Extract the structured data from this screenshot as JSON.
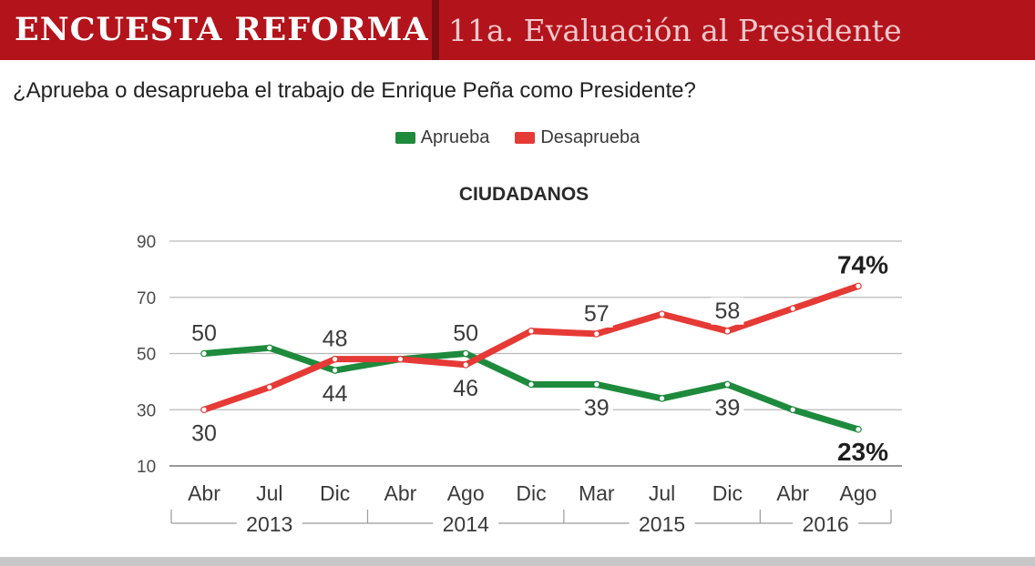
{
  "header": {
    "brand": "ENCUESTA REFORMA",
    "section": "11a. Evaluación al Presidente"
  },
  "question": "¿Aprueba o desaprueba el trabajo de Enrique Peña como Presidente?",
  "colors": {
    "header_bg": "#b3141c",
    "aprueba": "#1e8a3c",
    "desaprueba": "#e53a36"
  },
  "chart_data": {
    "type": "line",
    "title": "CIUDADANOS",
    "ylim": [
      10,
      90
    ],
    "yticks": [
      10,
      30,
      50,
      70,
      90
    ],
    "categories": [
      "Abr",
      "Jul",
      "Dic",
      "Abr",
      "Ago",
      "Dic",
      "Mar",
      "Jul",
      "Dic",
      "Abr",
      "Ago"
    ],
    "year_groups": [
      {
        "label": "2013",
        "from": 0,
        "to": 2
      },
      {
        "label": "2014",
        "from": 3,
        "to": 5
      },
      {
        "label": "2015",
        "from": 6,
        "to": 8
      },
      {
        "label": "2016",
        "from": 9,
        "to": 10
      }
    ],
    "series": [
      {
        "name": "Aprueba",
        "color": "#1e8a3c",
        "values": [
          50,
          52,
          44,
          48,
          50,
          39,
          39,
          34,
          39,
          30,
          23
        ]
      },
      {
        "name": "Desaprueba",
        "color": "#e53a36",
        "values": [
          30,
          38,
          48,
          48,
          46,
          58,
          57,
          64,
          58,
          66,
          74
        ]
      }
    ],
    "annotations": [
      {
        "series": 0,
        "index": 0,
        "text": "50",
        "pos": "above"
      },
      {
        "series": 0,
        "index": 2,
        "text": "44",
        "pos": "below"
      },
      {
        "series": 0,
        "index": 4,
        "text": "50",
        "pos": "above"
      },
      {
        "series": 0,
        "index": 6,
        "text": "39",
        "pos": "below"
      },
      {
        "series": 0,
        "index": 8,
        "text": "39",
        "pos": "below"
      },
      {
        "series": 0,
        "index": 10,
        "text": "23%",
        "pos": "below",
        "bold": true
      },
      {
        "series": 1,
        "index": 0,
        "text": "30",
        "pos": "below"
      },
      {
        "series": 1,
        "index": 2,
        "text": "48",
        "pos": "above"
      },
      {
        "series": 1,
        "index": 4,
        "text": "46",
        "pos": "below"
      },
      {
        "series": 1,
        "index": 6,
        "text": "57",
        "pos": "above"
      },
      {
        "series": 1,
        "index": 8,
        "text": "58",
        "pos": "above"
      },
      {
        "series": 1,
        "index": 10,
        "text": "74%",
        "pos": "above",
        "bold": true
      }
    ]
  }
}
